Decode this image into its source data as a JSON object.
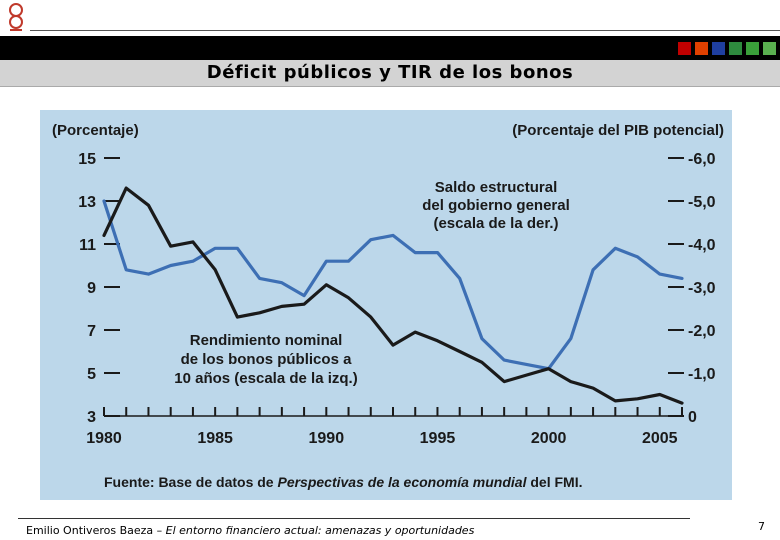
{
  "slide": {
    "title": "Déficit públicos y TIR de los bonos",
    "page_number": "7",
    "footer_author": "Emilio Ontiveros Baeza – ",
    "footer_work": "El entorno financiero actual: amenazas y oportunidades",
    "logo_icon": "knot-logo-icon",
    "accent_squares": [
      "#c00000",
      "#e04000",
      "#1f3fa0",
      "#2e8b3e",
      "#3aa03a",
      "#5ab050"
    ]
  },
  "chart_data": {
    "type": "line",
    "left_axis_label": "(Porcentaje)",
    "right_axis_label": "(Porcentaje del PIB potencial)",
    "left_ticks": [
      "15",
      "13",
      "11",
      "9",
      "7",
      "5",
      "3"
    ],
    "right_ticks": [
      "-6,0",
      "-5,0",
      "-4,0",
      "-3,0",
      "-2,0",
      "-1,0",
      "0"
    ],
    "x_tick_labels": [
      "1980",
      "1985",
      "1990",
      "1995",
      "2000",
      "2005"
    ],
    "left_ylim": [
      3,
      15
    ],
    "right_ylim": [
      0,
      -6
    ],
    "x_range": [
      1980,
      2006
    ],
    "series": [
      {
        "name": "Saldo estructural del gobierno general (escala de la der.)",
        "label_lines": [
          "Saldo estructural",
          "del gobierno general",
          "(escala de la der.)"
        ],
        "axis": "right",
        "color": "#3d6fb4",
        "x": [
          1980,
          1981,
          1982,
          1983,
          1984,
          1985,
          1986,
          1987,
          1988,
          1989,
          1990,
          1991,
          1992,
          1993,
          1994,
          1995,
          1996,
          1997,
          1998,
          1999,
          2000,
          2001,
          2002,
          2003,
          2004,
          2005,
          2006
        ],
        "values": [
          -5.0,
          -3.4,
          -3.3,
          -3.5,
          -3.6,
          -3.9,
          -3.9,
          -3.2,
          -3.1,
          -2.8,
          -3.6,
          -3.6,
          -4.1,
          -4.2,
          -3.8,
          -3.8,
          -3.2,
          -1.8,
          -1.3,
          -1.2,
          -1.1,
          -1.8,
          -3.4,
          -3.9,
          -3.7,
          -3.3,
          -3.2
        ]
      },
      {
        "name": "Rendimiento nominal de los bonos públicos a 10 años (escala de la izq.)",
        "label_lines": [
          "Rendimiento nominal",
          "de los bonos públicos a",
          "10 años (escala de la izq.)"
        ],
        "axis": "left",
        "color": "#1a1a1a",
        "x": [
          1980,
          1981,
          1982,
          1983,
          1984,
          1985,
          1986,
          1987,
          1988,
          1989,
          1990,
          1991,
          1992,
          1993,
          1994,
          1995,
          1996,
          1997,
          1998,
          1999,
          2000,
          2001,
          2002,
          2003,
          2004,
          2005,
          2006
        ],
        "values": [
          11.4,
          13.6,
          12.8,
          10.9,
          11.1,
          9.8,
          7.6,
          7.8,
          8.1,
          8.2,
          9.1,
          8.5,
          7.6,
          6.3,
          6.9,
          6.5,
          6.0,
          5.5,
          4.6,
          4.9,
          5.2,
          4.6,
          4.3,
          3.7,
          3.8,
          4.0,
          3.6
        ]
      }
    ],
    "source_prefix": "Fuente: Base de datos de ",
    "source_title": "Perspectivas de la economía mundial",
    "source_suffix": " del FMI."
  }
}
